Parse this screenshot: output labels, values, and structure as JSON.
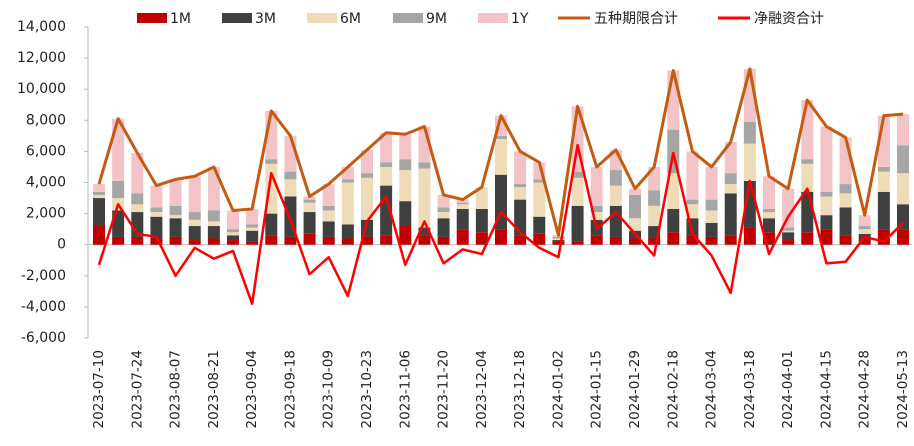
{
  "chart_data": {
    "type": "bar",
    "stacked": true,
    "categories": [
      "2023-07-10",
      null,
      "2023-07-24",
      null,
      "2023-08-07",
      null,
      "2023-08-21",
      null,
      "2023-09-04",
      null,
      "2023-09-18",
      null,
      "2023-10-09",
      null,
      "2023-10-23",
      null,
      "2023-11-06",
      null,
      "2023-11-20",
      null,
      "2023-12-04",
      null,
      "2023-12-18",
      null,
      "2024-01-02",
      null,
      "2024-01-15",
      null,
      "2024-01-29",
      null,
      "2024-02-18",
      null,
      "2024-03-04",
      null,
      "2024-03-18",
      null,
      "2024-04-01",
      null,
      "2024-04-15",
      null,
      "2024-04-28",
      null,
      "2024-05-13"
    ],
    "series": [
      {
        "name": "1M",
        "type": "bar",
        "color": "#c00000",
        "values": [
          1200,
          500,
          500,
          400,
          500,
          300,
          400,
          300,
          200,
          600,
          500,
          700,
          500,
          400,
          500,
          600,
          1200,
          600,
          500,
          1000,
          800,
          1000,
          600,
          700,
          200,
          200,
          600,
          500,
          400,
          400,
          800,
          600,
          500,
          600,
          1100,
          800,
          300,
          800,
          1000,
          600,
          400,
          1000,
          1000
        ]
      },
      {
        "name": "3M",
        "type": "bar",
        "color": "#404040",
        "values": [
          1800,
          1700,
          1600,
          1400,
          1200,
          900,
          800,
          300,
          700,
          1400,
          2600,
          1400,
          1000,
          900,
          1100,
          3200,
          1600,
          500,
          1200,
          1300,
          1500,
          3500,
          2300,
          1100,
          100,
          2300,
          1000,
          2000,
          500,
          800,
          1500,
          1100,
          900,
          2700,
          3000,
          900,
          500,
          2600,
          900,
          1800,
          300,
          2400,
          1600
        ]
      },
      {
        "name": "6M",
        "type": "bar",
        "color": "#eedcb8",
        "values": [
          200,
          800,
          500,
          300,
          200,
          400,
          300,
          200,
          200,
          3200,
          1100,
          600,
          700,
          2700,
          2700,
          1200,
          2000,
          3800,
          400,
          300,
          1400,
          2300,
          800,
          2200,
          100,
          1800,
          500,
          1300,
          800,
          1300,
          2300,
          900,
          800,
          600,
          2400,
          400,
          100,
          1800,
          1200,
          900,
          300,
          1300,
          2000
        ]
      },
      {
        "name": "9M",
        "type": "bar",
        "color": "#a6a6a6",
        "values": [
          200,
          1100,
          700,
          300,
          600,
          500,
          700,
          200,
          200,
          300,
          500,
          200,
          300,
          200,
          300,
          300,
          700,
          400,
          300,
          100,
          0,
          200,
          200,
          200,
          100,
          400,
          400,
          1000,
          1500,
          1000,
          2800,
          300,
          700,
          700,
          1400,
          200,
          200,
          300,
          300,
          600,
          200,
          300,
          1800
        ]
      },
      {
        "name": "1Y",
        "type": "bar",
        "color": "#f2c4c8",
        "values": [
          500,
          4000,
          2600,
          1400,
          1700,
          2300,
          2800,
          1200,
          1000,
          3100,
          2300,
          200,
          1400,
          800,
          1500,
          1900,
          1600,
          2300,
          800,
          200,
          0,
          1300,
          2100,
          1100,
          100,
          4200,
          2500,
          1300,
          400,
          1500,
          3800,
          3100,
          2100,
          2000,
          3400,
          2100,
          2500,
          3800,
          4200,
          3000,
          700,
          3300,
          2000
        ]
      },
      {
        "name": "五种期限合计",
        "type": "line",
        "color": "#c55a11",
        "values": [
          3900,
          8100,
          5900,
          3800,
          4200,
          4400,
          5000,
          2200,
          2300,
          8600,
          7000,
          3100,
          3900,
          5000,
          6100,
          7200,
          7100,
          7600,
          3200,
          2900,
          3700,
          8300,
          6000,
          5300,
          600,
          8900,
          5000,
          6100,
          3600,
          5000,
          11200,
          6000,
          5000,
          6600,
          11300,
          4400,
          3600,
          9300,
          7600,
          6900,
          1900,
          8300,
          8400
        ]
      },
      {
        "name": "净融资合计",
        "type": "line",
        "color": "#ff0000",
        "values": [
          -1300,
          2600,
          700,
          500,
          -2000,
          -200,
          -900,
          -400,
          -3800,
          4600,
          1600,
          -1900,
          -800,
          -3300,
          1500,
          3100,
          -1300,
          1500,
          -1200,
          -300,
          -600,
          2100,
          800,
          -200,
          -800,
          6400,
          1000,
          2100,
          700,
          -700,
          5900,
          700,
          -700,
          -3100,
          4100,
          -600,
          1800,
          3600,
          -1200,
          -1100,
          500,
          200,
          1400
        ]
      }
    ],
    "ylim": [
      -6000,
      14000
    ],
    "yticks": [
      {
        "value": -6000,
        "label": "-6,000"
      },
      {
        "value": -4000,
        "label": "-4,000"
      },
      {
        "value": -2000,
        "label": "-2,000"
      },
      0,
      {
        "value": 2000,
        "label": "2,000"
      },
      {
        "value": 4000,
        "label": "4,000"
      },
      {
        "value": 6000,
        "label": "6,000"
      },
      {
        "value": 8000,
        "label": "8,000"
      },
      {
        "value": 10000,
        "label": "10,000"
      },
      {
        "value": 12000,
        "label": "12,000"
      },
      {
        "value": 14000,
        "label": "14,000"
      }
    ],
    "legend": "top",
    "grid": false
  }
}
